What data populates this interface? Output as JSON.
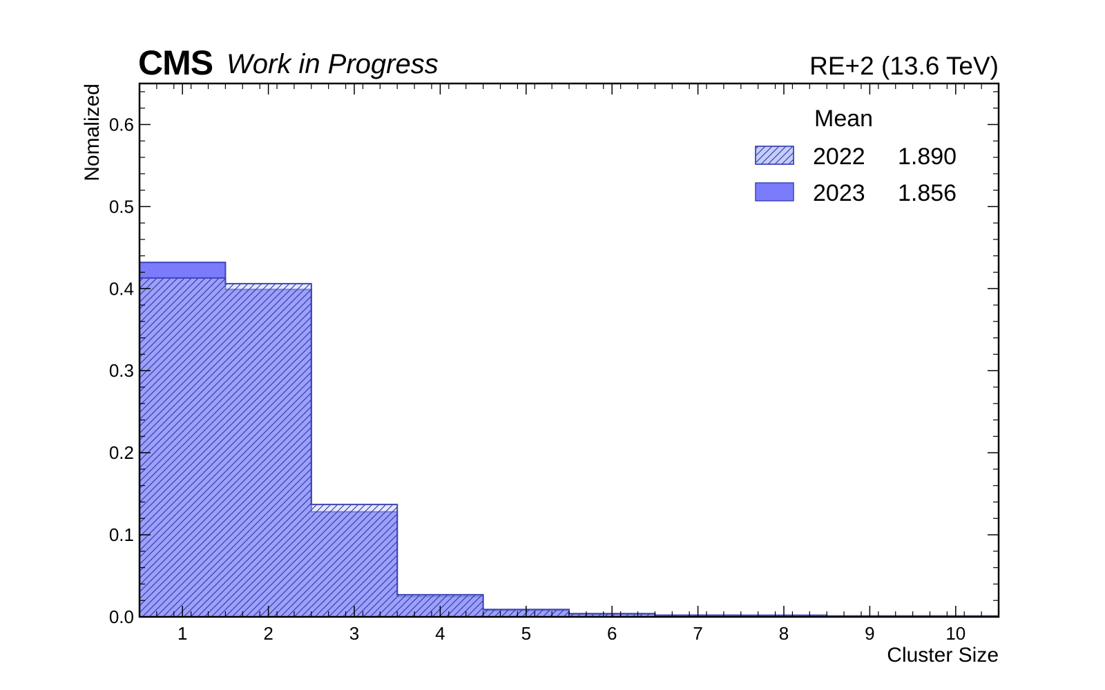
{
  "header": {
    "experiment": "CMS",
    "status": "Work in Progress",
    "label": "RE+2 (13.6 TeV)"
  },
  "legend": {
    "title": "Mean",
    "entries": [
      {
        "name": "2022",
        "mean": "1.890"
      },
      {
        "name": "2023",
        "mean": "1.856"
      }
    ]
  },
  "colors": {
    "fill_2023": "#7b7cfb",
    "fill_2022": "#c5cdfa",
    "edge": "#3a44b8",
    "hatch": "#2b33a0"
  },
  "chart_data": {
    "type": "bar",
    "histogram": true,
    "xlabel": "Cluster Size",
    "ylabel": "Nomalized",
    "xlim": [
      0.5,
      10.5
    ],
    "ylim": [
      0,
      0.65
    ],
    "x_ticks": [
      1,
      2,
      3,
      4,
      5,
      6,
      7,
      8,
      9,
      10
    ],
    "y_ticks": [
      "0.0",
      "0.1",
      "0.2",
      "0.3",
      "0.4",
      "0.5",
      "0.6"
    ],
    "categories": [
      1,
      2,
      3,
      4,
      5,
      6,
      7,
      8,
      9,
      10
    ],
    "series": [
      {
        "name": "2022",
        "style": "hatched",
        "values": [
          0.413,
          0.406,
          0.137,
          0.027,
          0.009,
          0.004,
          0.002,
          0.002,
          0.001,
          0.001
        ]
      },
      {
        "name": "2023",
        "style": "filled",
        "values": [
          0.432,
          0.399,
          0.128,
          0.025,
          0.008,
          0.003,
          0.002,
          0.001,
          0.001,
          0.001
        ]
      }
    ]
  }
}
